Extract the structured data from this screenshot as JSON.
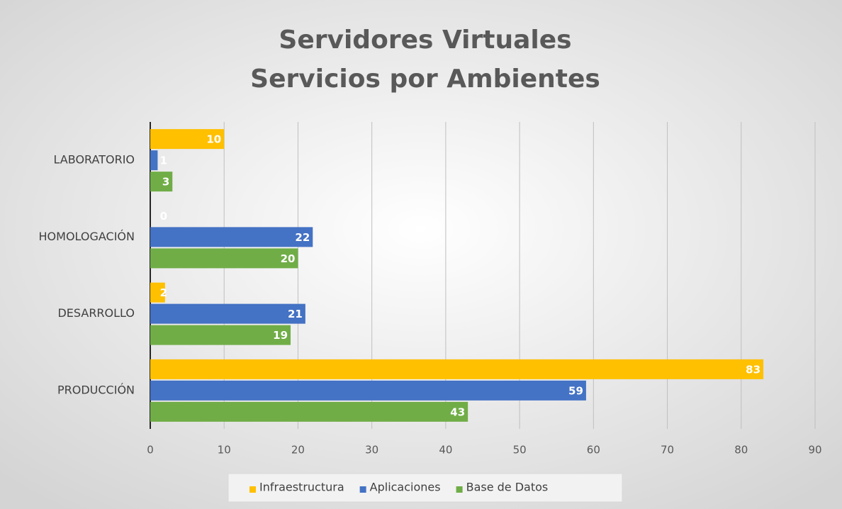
{
  "chart_data": {
    "type": "bar",
    "orientation": "horizontal",
    "title": [
      "Servidores Virtuales",
      "Servicios por Ambientes"
    ],
    "categories": [
      "LABORATORIO",
      "HOMOLOGACIÓN",
      "DESARROLLO",
      "PRODUCCIÓN"
    ],
    "series": [
      {
        "name": "Infraestructura",
        "color": "#ffc000",
        "values": [
          10,
          0,
          2,
          83
        ]
      },
      {
        "name": "Aplicaciones",
        "color": "#4472c4",
        "values": [
          1,
          22,
          21,
          59
        ]
      },
      {
        "name": "Base de Datos",
        "color": "#70ad47",
        "values": [
          3,
          20,
          19,
          43
        ]
      }
    ],
    "xlim": [
      0,
      90
    ],
    "xticks": [
      0,
      10,
      20,
      30,
      40,
      50,
      60,
      70,
      80,
      90
    ],
    "grid": true,
    "legend": "bottom",
    "data_labels": true
  }
}
